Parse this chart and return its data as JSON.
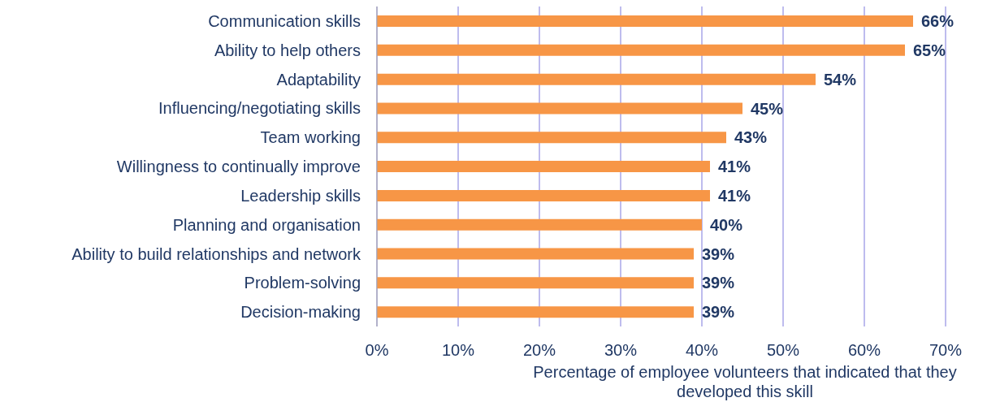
{
  "chart_data": {
    "type": "bar",
    "orientation": "horizontal",
    "categories": [
      "Communication skills",
      "Ability to help others",
      "Adaptability",
      "Influencing/negotiating skills",
      "Team working",
      "Willingness to continually improve",
      "Leadership skills",
      "Planning and organisation",
      "Ability to build relationships and network",
      "Problem-solving",
      "Decision-making"
    ],
    "values": [
      66,
      65,
      54,
      45,
      43,
      41,
      41,
      40,
      39,
      39,
      39
    ],
    "value_labels": [
      "66%",
      "65%",
      "54%",
      "45%",
      "43%",
      "41%",
      "41%",
      "40%",
      "39%",
      "39%",
      "39%"
    ],
    "color": "#f79646",
    "xlim": [
      0,
      70
    ],
    "xticks": [
      {
        "value": 0,
        "label": "0%"
      },
      {
        "value": 10,
        "label": "10%"
      },
      {
        "value": 20,
        "label": "20%"
      },
      {
        "value": 30,
        "label": "30%"
      },
      {
        "value": 40,
        "label": "40%"
      },
      {
        "value": 50,
        "label": "50%"
      },
      {
        "value": 60,
        "label": "60%"
      },
      {
        "value": 70,
        "label": "70%"
      }
    ],
    "xlabel": "Percentage of employee volunteers that indicated that they developed this skill",
    "grid": "x"
  }
}
